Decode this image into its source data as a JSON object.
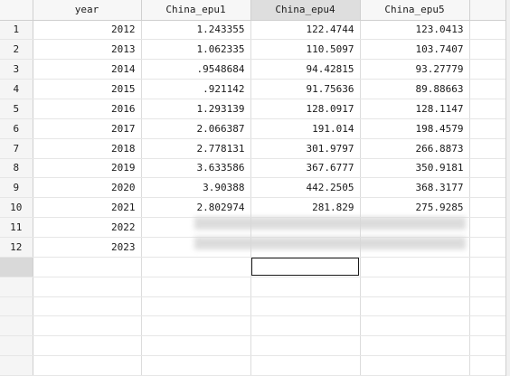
{
  "columns": [
    "year",
    "China_epu1",
    "China_epu4",
    "China_epu5"
  ],
  "rows": [
    {
      "n": "1",
      "year": "2012",
      "epu1": "1.243355",
      "epu4": "122.4744",
      "epu5": "123.0413"
    },
    {
      "n": "2",
      "year": "2013",
      "epu1": "1.062335",
      "epu4": "110.5097",
      "epu5": "103.7407"
    },
    {
      "n": "3",
      "year": "2014",
      "epu1": ".9548684",
      "epu4": "94.42815",
      "epu5": "93.27779"
    },
    {
      "n": "4",
      "year": "2015",
      "epu1": ".921142",
      "epu4": "91.75636",
      "epu5": "89.88663"
    },
    {
      "n": "5",
      "year": "2016",
      "epu1": "1.293139",
      "epu4": "128.0917",
      "epu5": "128.1147"
    },
    {
      "n": "6",
      "year": "2017",
      "epu1": "2.066387",
      "epu4": "191.014",
      "epu5": "198.4579"
    },
    {
      "n": "7",
      "year": "2018",
      "epu1": "2.778131",
      "epu4": "301.9797",
      "epu5": "266.8873"
    },
    {
      "n": "8",
      "year": "2019",
      "epu1": "3.633586",
      "epu4": "367.6777",
      "epu5": "350.9181"
    },
    {
      "n": "9",
      "year": "2020",
      "epu1": "3.90388",
      "epu4": "442.2505",
      "epu5": "368.3177"
    },
    {
      "n": "10",
      "year": "2021",
      "epu1": "2.802974",
      "epu4": "281.829",
      "epu5": "275.9285"
    },
    {
      "n": "11",
      "year": "2022",
      "epu1": "",
      "epu4": "",
      "epu5": ""
    },
    {
      "n": "12",
      "year": "2023",
      "epu1": "",
      "epu4": "",
      "epu5": ""
    }
  ]
}
